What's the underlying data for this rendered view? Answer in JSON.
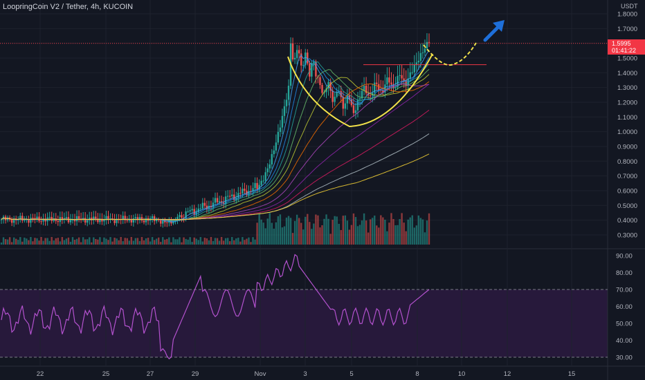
{
  "chart_title": "LoopringCoin V2 / Tether, 4h, KUCOIN",
  "price_unit": "USDT",
  "price_ticks": [
    "1.8000",
    "1.7000",
    "1.6000",
    "1.5000",
    "1.4000",
    "1.3000",
    "1.2000",
    "1.1000",
    "1.0000",
    "0.9000",
    "0.8000",
    "0.7000",
    "0.6000",
    "0.5000",
    "0.4000",
    "0.3000"
  ],
  "rsi_ticks": [
    "90.00",
    "80.00",
    "70.00",
    "60.00",
    "50.00",
    "40.00",
    "30.00"
  ],
  "date_ticks": [
    "22",
    "25",
    "27",
    "29",
    "Nov",
    "3",
    "5",
    "8",
    "10",
    "12",
    "15"
  ],
  "last_price": "1.5995",
  "countdown": "01:41:22",
  "colors": {
    "up": "#26a69a",
    "down": "#ef5350",
    "rsi": "#b452cf",
    "pattern": "#f2e24a",
    "arrow": "#1e6fd9",
    "price_line": "#f23645"
  },
  "chart_data": {
    "type": "candlestick",
    "title": "LoopringCoin V2 / Tether, 4h, KUCOIN",
    "ylabel": "USDT",
    "ylim": [
      0.27,
      1.83
    ],
    "rsi_ylim": [
      27,
      93
    ],
    "rsi_levels": [
      70,
      30
    ],
    "last_price": 1.5995,
    "x_ticks": [
      "22",
      "25",
      "27",
      "29",
      "Nov",
      "3",
      "5",
      "8",
      "10",
      "12",
      "15"
    ],
    "annotations": [
      "cup and handle pattern",
      "upward arrow",
      "resistance line near 1.45"
    ]
  }
}
